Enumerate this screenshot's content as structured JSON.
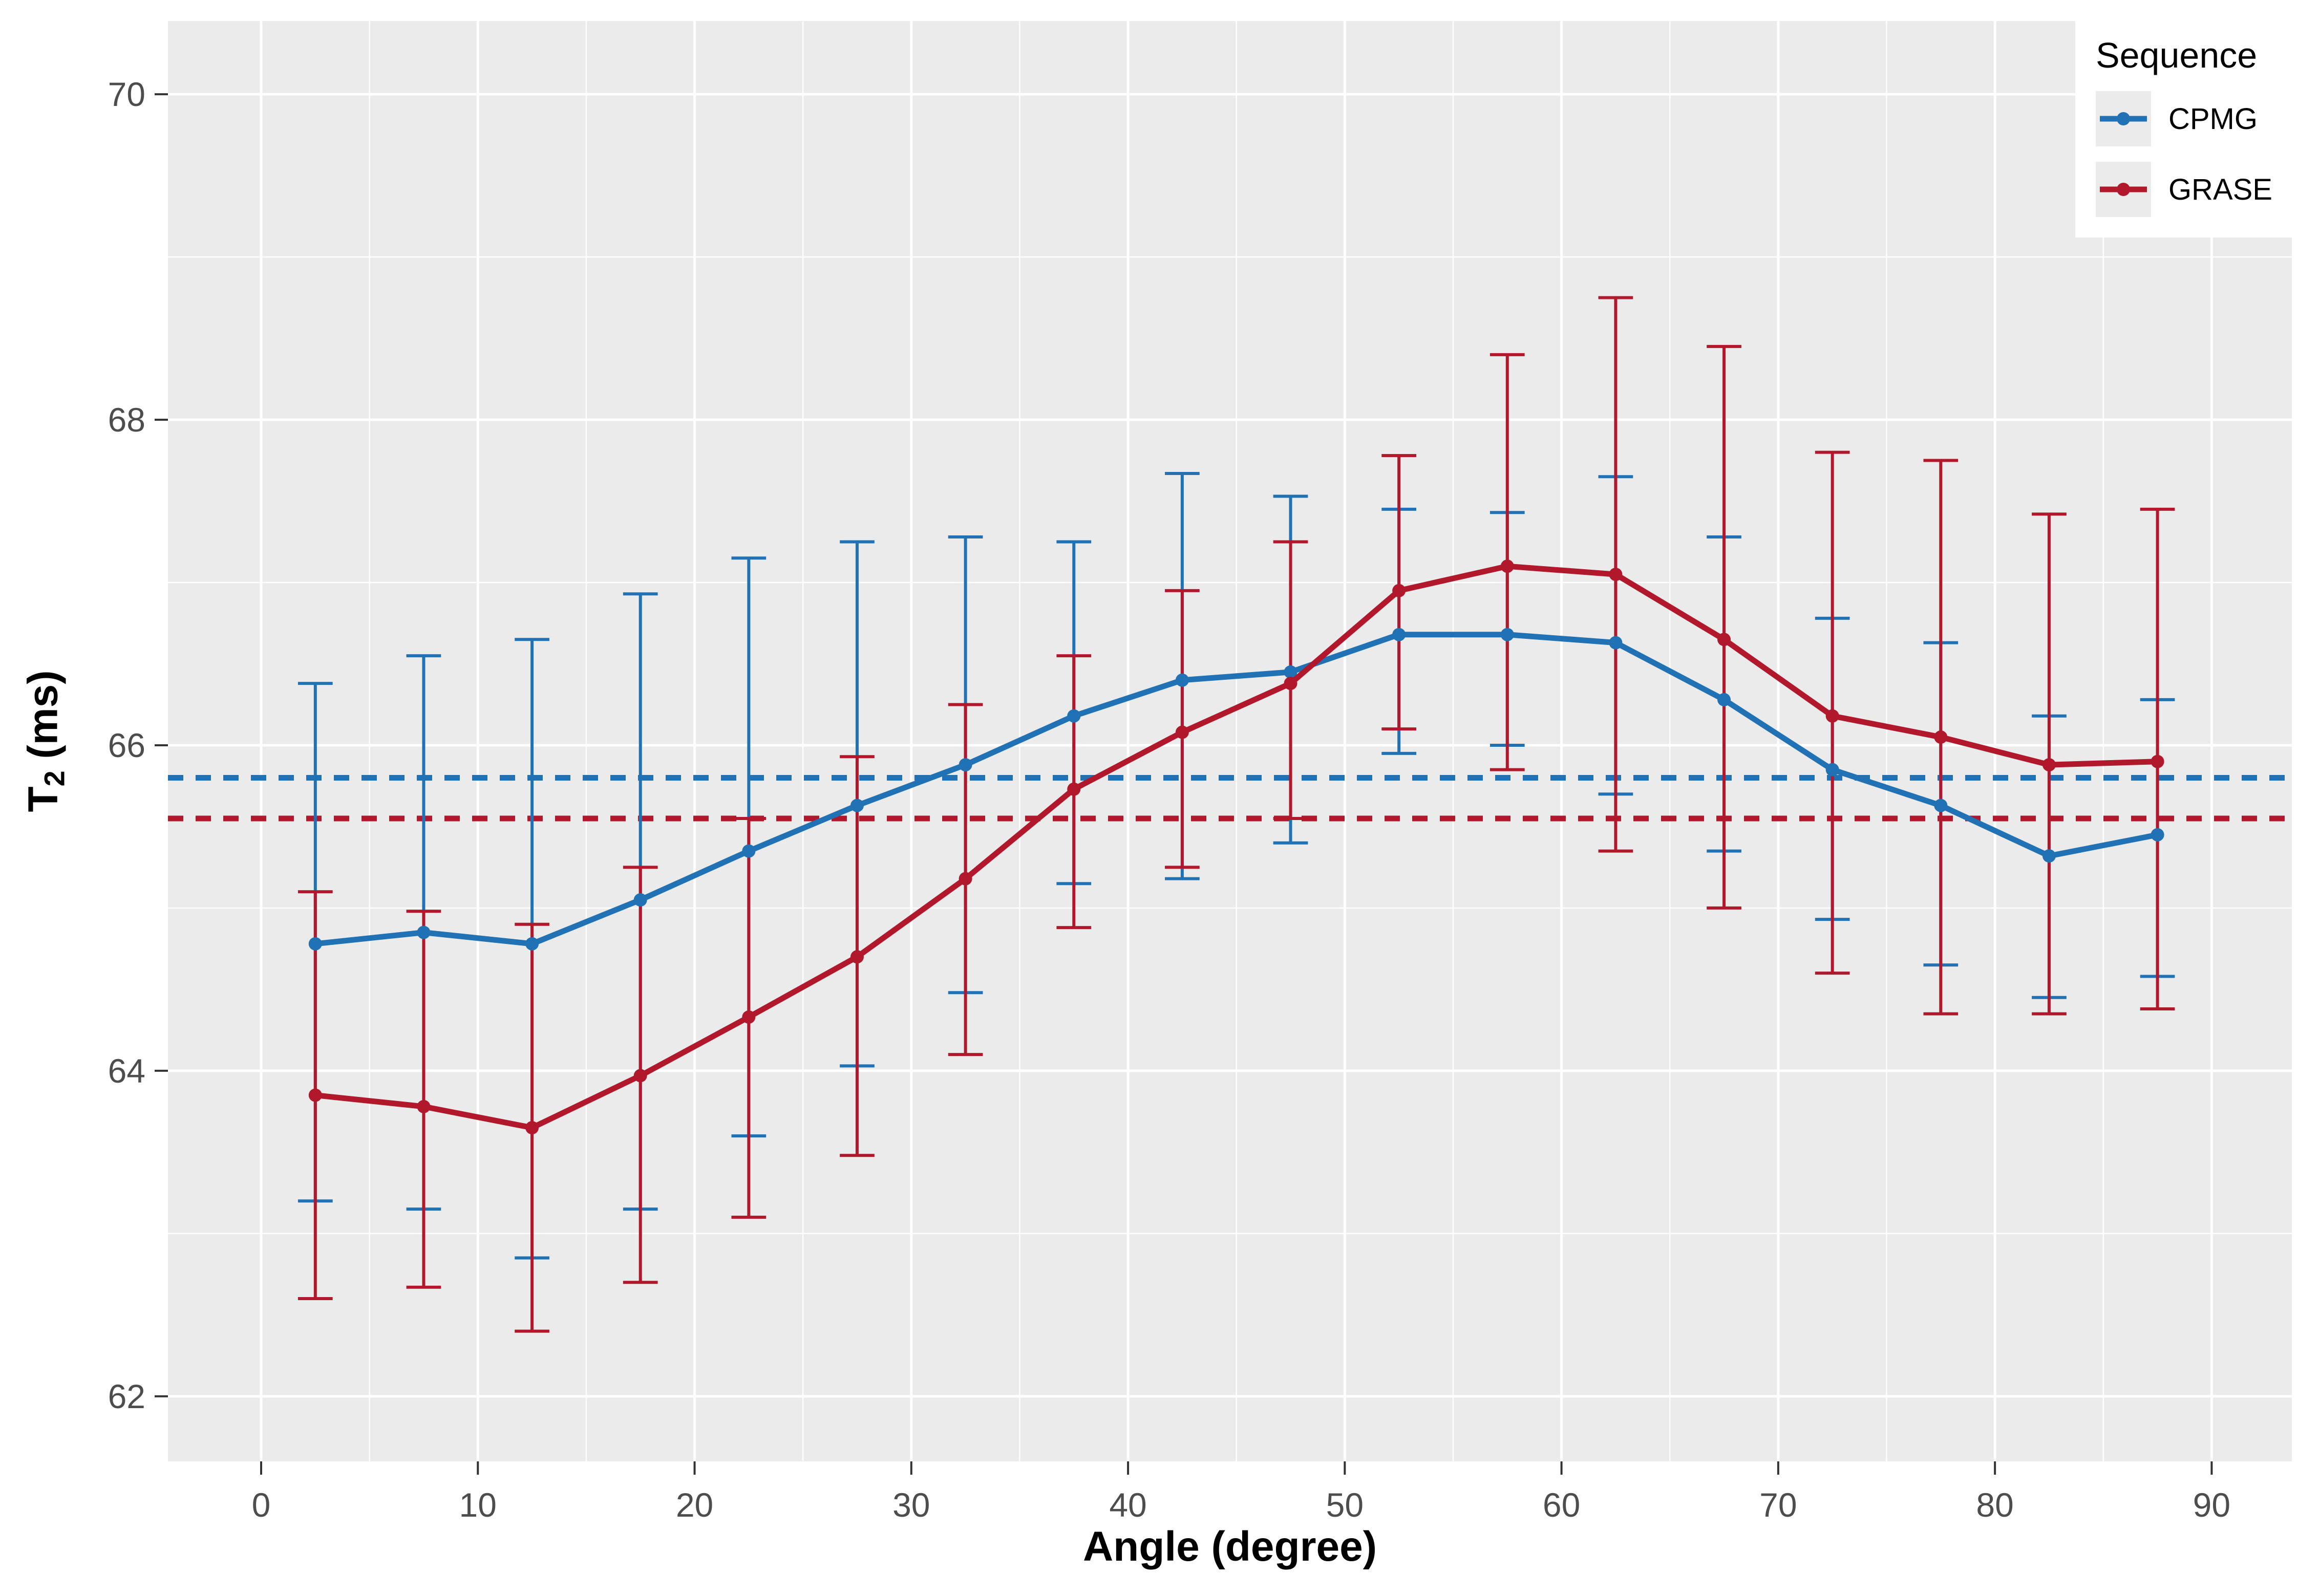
{
  "chart_data": {
    "type": "line",
    "title": "",
    "xlabel": "Angle (degree)",
    "ylabel": "T2 (ms)",
    "ylabel_parts": {
      "main": "T",
      "sub": "2",
      "unit": " (ms)"
    },
    "x": [
      2.5,
      7.5,
      12.5,
      17.5,
      22.5,
      27.5,
      32.5,
      37.5,
      42.5,
      47.5,
      52.5,
      57.5,
      62.5,
      67.5,
      72.5,
      77.5,
      82.5,
      87.5
    ],
    "series": [
      {
        "name": "CPMG",
        "color": "#2171B5",
        "y": [
          64.78,
          64.85,
          64.78,
          65.05,
          65.35,
          65.63,
          65.88,
          66.18,
          66.4,
          66.45,
          66.68,
          66.68,
          66.63,
          66.28,
          65.85,
          65.63,
          65.32,
          65.45
        ],
        "ymin": [
          63.2,
          63.15,
          62.85,
          63.15,
          63.6,
          64.03,
          64.48,
          65.15,
          65.18,
          65.4,
          65.95,
          66.0,
          65.7,
          65.35,
          64.93,
          64.65,
          64.45,
          64.58
        ],
        "ymax": [
          66.38,
          66.55,
          66.65,
          66.93,
          67.15,
          67.25,
          67.28,
          67.25,
          67.67,
          67.53,
          67.45,
          67.43,
          67.65,
          67.28,
          66.78,
          66.63,
          66.18,
          66.28
        ]
      },
      {
        "name": "GRASE",
        "color": "#B2182B",
        "y": [
          63.85,
          63.78,
          63.65,
          63.97,
          64.33,
          64.7,
          65.18,
          65.73,
          66.08,
          66.38,
          66.95,
          67.1,
          67.05,
          66.65,
          66.18,
          66.05,
          65.88,
          65.9
        ],
        "ymin": [
          62.6,
          62.67,
          62.4,
          62.7,
          63.1,
          63.48,
          64.1,
          64.88,
          65.25,
          65.55,
          66.1,
          65.85,
          65.35,
          65.0,
          64.6,
          64.35,
          64.35,
          64.38
        ],
        "ymax": [
          65.1,
          64.98,
          64.9,
          65.25,
          65.55,
          65.93,
          66.25,
          66.55,
          66.95,
          67.25,
          67.78,
          68.4,
          68.75,
          68.45,
          67.8,
          67.75,
          67.42,
          67.45
        ]
      }
    ],
    "hlines": [
      {
        "y": 65.8,
        "color": "#2171B5",
        "style": "dashed"
      },
      {
        "y": 65.55,
        "color": "#B2182B",
        "style": "dashed"
      }
    ],
    "axes": {
      "xlim": [
        -4.3,
        93.7
      ],
      "ylim": [
        61.6,
        70.45
      ],
      "x_ticks": [
        0,
        10,
        20,
        30,
        40,
        50,
        60,
        70,
        80,
        90
      ],
      "y_ticks": [
        62,
        64,
        66,
        68,
        70
      ],
      "x_minor": [
        5,
        15,
        25,
        35,
        45,
        55,
        65,
        75,
        85
      ],
      "y_minor": [
        63,
        65,
        67,
        69
      ]
    },
    "legend": {
      "title": "Sequence",
      "position": "top-right",
      "entries": [
        {
          "label": "CPMG",
          "color": "#2171B5"
        },
        {
          "label": "GRASE",
          "color": "#B2182B"
        }
      ]
    },
    "panel_bg": "#EBEBEB",
    "grid_color": "#FFFFFF",
    "tick_label_color": "#4D4D4D",
    "tick_mark_color": "#333333"
  }
}
